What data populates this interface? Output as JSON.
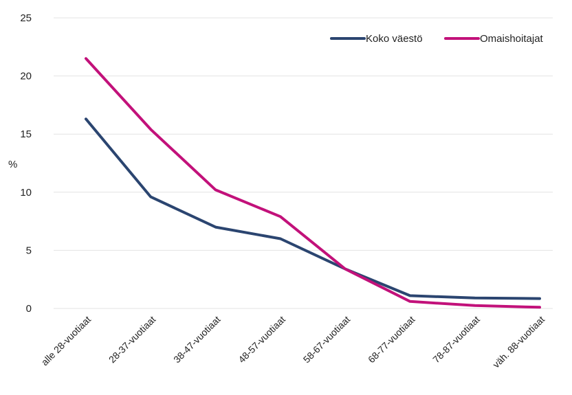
{
  "chart_data": {
    "type": "line",
    "title": "",
    "xlabel": "",
    "ylabel": "%",
    "ylim": [
      0,
      25
    ],
    "yticks": [
      0,
      5,
      10,
      15,
      20,
      25
    ],
    "grid": true,
    "legend_position": "top-right",
    "categories": [
      "alle 28-vuotiaat",
      "28-37-vuotiaat",
      "38-47-vuotiaat",
      "48-57-vuotiaat",
      "58-67-vuotiaat",
      "68-77-vuotiaat",
      "78-87-vuotiaat",
      "väh. 88-vuotiaat"
    ],
    "series": [
      {
        "name": "Koko väestö",
        "color": "#2b4570",
        "values": [
          16.3,
          9.6,
          7.0,
          6.0,
          3.4,
          1.1,
          0.9,
          0.85
        ]
      },
      {
        "name": "Omaishoitajat",
        "color": "#c2117a",
        "values": [
          21.5,
          15.4,
          10.2,
          7.9,
          3.4,
          0.6,
          0.25,
          0.1
        ]
      }
    ]
  }
}
